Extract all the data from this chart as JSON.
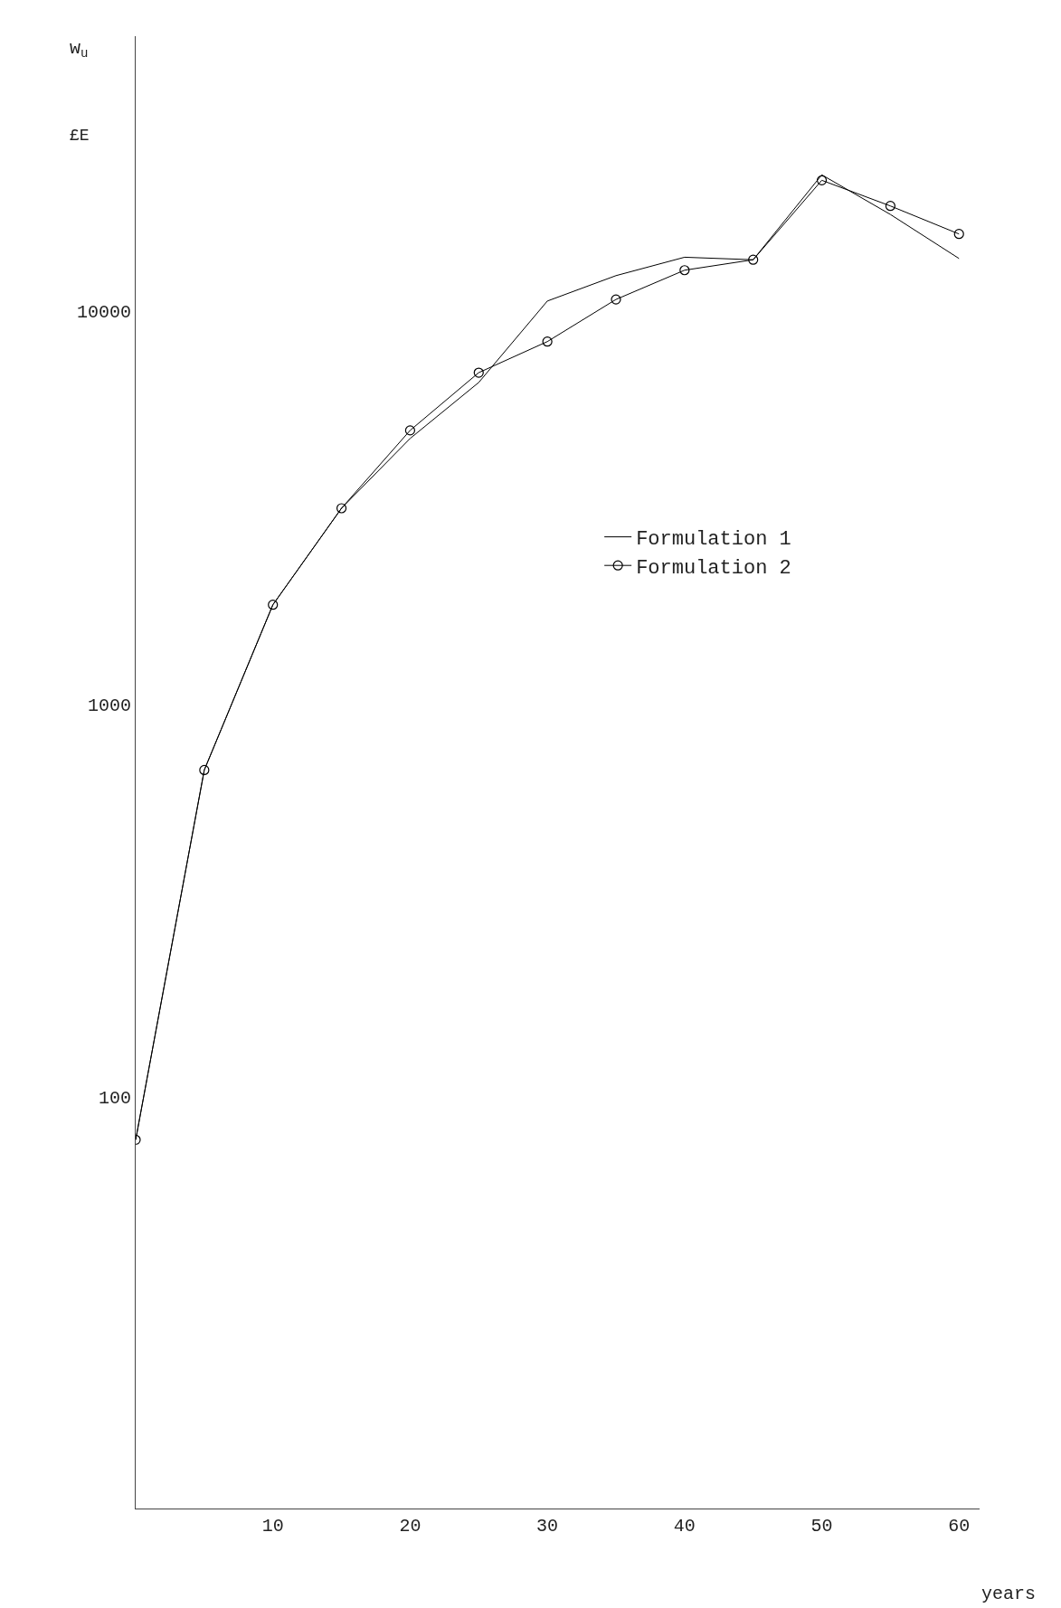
{
  "chart_data": {
    "type": "line",
    "xlabel": "years",
    "ylabel": "w$_{u}$",
    "annotations": [
      "£E"
    ],
    "x": [
      0,
      5,
      10,
      15,
      20,
      25,
      30,
      35,
      40,
      45,
      50,
      55,
      60
    ],
    "series": [
      {
        "name": "Formulation 1",
        "color": "#000000",
        "marker": "none",
        "values": [
          78,
          680,
          1790,
          3150,
          4740,
          6580,
          10600,
          12300,
          13700,
          13500,
          22200,
          17600,
          13600
        ]
      },
      {
        "name": "Formulation 2",
        "color": "#000000",
        "marker": "circle",
        "values": [
          78,
          680,
          1790,
          3150,
          4970,
          6970,
          8360,
          10700,
          12700,
          13500,
          21500,
          18500,
          15700
        ]
      }
    ],
    "log": "y",
    "xlim": [
      0,
      61.5
    ],
    "xticks": [
      10,
      20,
      30,
      40,
      50,
      60
    ],
    "ylim": [
      9,
      50000
    ],
    "yticks": [
      100,
      1000,
      10000
    ],
    "legend": "right"
  }
}
